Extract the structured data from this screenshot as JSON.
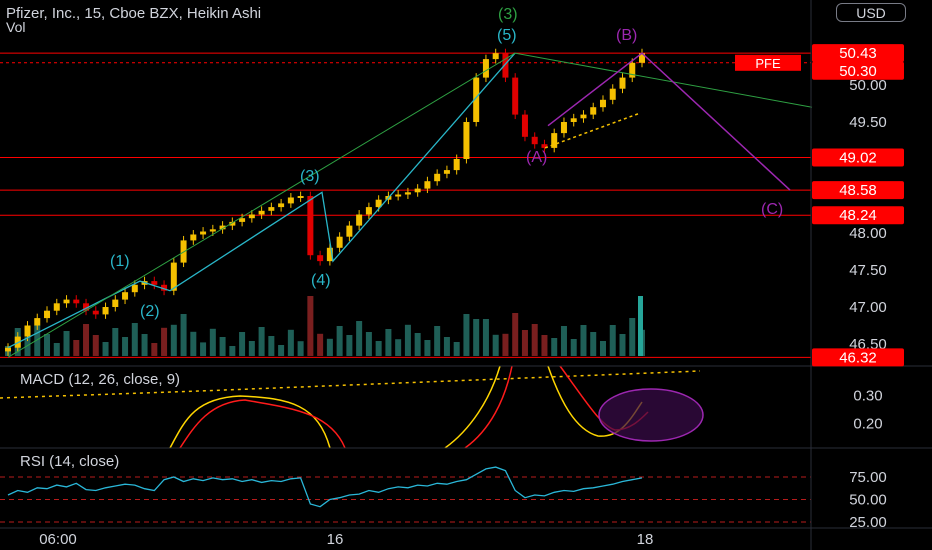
{
  "header": {
    "title": "Pfizer, Inc., 15, Cboe BZX, Heikin Ashi",
    "vol_label": "Vol",
    "currency_button": "USD"
  },
  "panes": {
    "macd_label": "MACD (12, 26, close, 9)",
    "rsi_label": "RSI (14, close)"
  },
  "price_axis": {
    "ticks": [
      "50.00",
      "49.50",
      "48.00",
      "47.50",
      "47.00",
      "46.50"
    ],
    "badges": [
      {
        "value": "50.43",
        "color": "#ff0000"
      },
      {
        "value": "50.30",
        "color": "#ff0000"
      },
      {
        "value": "49.02",
        "color": "#ff0000"
      },
      {
        "value": "48.58",
        "color": "#ff0000"
      },
      {
        "value": "48.24",
        "color": "#ff0000"
      },
      {
        "value": "46.32",
        "color": "#ff0000"
      }
    ],
    "pfe_tag": "PFE"
  },
  "macd_axis": {
    "ticks": [
      "0.30",
      "0.20"
    ]
  },
  "rsi_axis": {
    "ticks": [
      "75.00",
      "50.00",
      "25.00"
    ]
  },
  "time_axis": {
    "ticks": [
      "06:00",
      "16",
      "18"
    ]
  },
  "wave_labels": {
    "w1": "(1)",
    "w2": "(2)",
    "w3": "(3)",
    "w4": "(4)",
    "w5": "(5)",
    "big3": "(3)",
    "wa": "(A)",
    "wb": "(B)",
    "wc": "(C)"
  },
  "colors": {
    "background": "#000000",
    "candle_up": "#f5c000",
    "candle_down": "#e00000",
    "level_line": "#ff0000",
    "wave_teal": "#29b6c8",
    "wave_green": "#2ea043",
    "wave_purple": "#9c27b0",
    "macd_line": "#ffd600",
    "signal_line": "#ff1b1b",
    "rsi_line": "#2ab7d8"
  },
  "chart_data": {
    "type": "candlestick",
    "price_ticks": [
      50.0,
      49.5,
      48.0,
      47.5,
      47.0,
      46.5
    ],
    "ylim": [
      46.3,
      50.7
    ],
    "horizontal_levels": [
      50.43,
      50.3,
      49.02,
      48.58,
      48.24,
      46.32
    ],
    "wave_pivots": [
      {
        "label": "(1)",
        "price": 47.35
      },
      {
        "label": "(2)",
        "price": 47.22
      },
      {
        "label": "(3)",
        "price": 48.55
      },
      {
        "label": "(4)",
        "price": 47.62
      },
      {
        "label": "(5)",
        "price": 50.43
      },
      {
        "label": "(A)",
        "price": 49.15
      },
      {
        "label": "(B)",
        "price": 50.43
      },
      {
        "label": "(C)",
        "price": 48.58
      }
    ],
    "close_path": [
      46.45,
      46.6,
      46.75,
      46.85,
      46.95,
      47.05,
      47.1,
      47.05,
      46.95,
      46.9,
      47.0,
      47.1,
      47.2,
      47.3,
      47.35,
      47.3,
      47.22,
      47.6,
      47.9,
      47.98,
      48.02,
      48.05,
      48.1,
      48.15,
      48.2,
      48.25,
      48.3,
      48.35,
      48.4,
      48.48,
      48.5,
      47.7,
      47.62,
      47.8,
      47.95,
      48.1,
      48.25,
      48.35,
      48.45,
      48.5,
      48.52,
      48.55,
      48.6,
      48.7,
      48.8,
      48.85,
      49.0,
      49.5,
      50.1,
      50.35,
      50.43,
      50.1,
      49.6,
      49.3,
      49.2,
      49.15,
      49.35,
      49.5,
      49.55,
      49.6,
      49.7,
      49.8,
      49.95,
      50.1,
      50.3,
      50.43
    ],
    "rsi_levels": [
      75,
      50,
      25
    ],
    "macd_range": [
      0.15,
      0.36
    ]
  }
}
